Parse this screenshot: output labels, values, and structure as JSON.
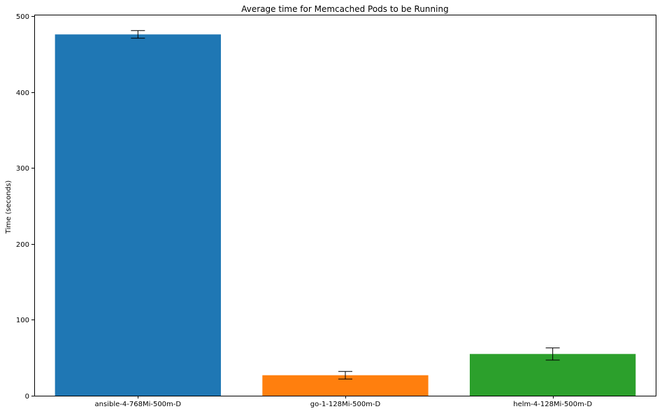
{
  "chart_data": {
    "type": "bar",
    "title": "Average time for Memcached Pods to be Running",
    "xlabel": "",
    "ylabel": "Time (seconds)",
    "categories": [
      "ansible-4-768Mi-500m-D",
      "go-1-128Mi-500m-D",
      "helm-4-128Mi-500m-D"
    ],
    "values": [
      476,
      27,
      55
    ],
    "errors": [
      5,
      5,
      8
    ],
    "colors": [
      "#1f77b4",
      "#ff7f0e",
      "#2ca02c"
    ],
    "ylim": [
      0,
      502
    ],
    "yticks": [
      0,
      100,
      200,
      300,
      400,
      500
    ],
    "grid": false
  }
}
